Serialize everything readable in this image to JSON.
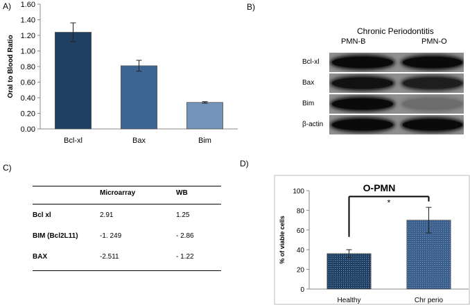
{
  "panel_labels": {
    "a": "A)",
    "b": "B)",
    "c": "C)",
    "d": "D)"
  },
  "chart_data": [
    {
      "type": "bar",
      "title": "",
      "xlabel": "",
      "ylabel": "Oral to Blood Ratio",
      "categories": [
        "Bcl-xl",
        "Bax",
        "Bim"
      ],
      "values": [
        1.24,
        0.81,
        0.34
      ],
      "errors": [
        0.12,
        0.07,
        0.01
      ],
      "ylim": [
        0,
        1.6
      ],
      "yticks": [
        "0.00",
        "0.20",
        "0.40",
        "0.60",
        "0.80",
        "1.00",
        "1.20",
        "1.40",
        "1.60"
      ],
      "colors": [
        "#1f3f63",
        "#3c6594",
        "#7393b8"
      ]
    },
    {
      "type": "bar",
      "title": "O-PMN",
      "xlabel": "",
      "ylabel": "% of viable cells",
      "categories": [
        "Healthy",
        "Chr perio"
      ],
      "values": [
        36,
        70
      ],
      "errors": [
        4,
        13
      ],
      "ylim": [
        0,
        100
      ],
      "yticks": [
        "0",
        "20",
        "40",
        "60",
        "80",
        "100"
      ],
      "colors": [
        "#1f3f63",
        "#3a5f8c"
      ],
      "significance": "*"
    }
  ],
  "blot": {
    "title": "Chronic Periodontitis",
    "lanes": [
      "PMN-B",
      "PMN-O"
    ],
    "rows": [
      {
        "label": "Bcl-xl",
        "b_intensity": 1.0,
        "o_intensity": 1.0
      },
      {
        "label": "Bax",
        "b_intensity": 0.95,
        "o_intensity": 0.85
      },
      {
        "label": "Bim",
        "b_intensity": 1.0,
        "o_intensity": 0.25
      },
      {
        "label": "β-actin",
        "b_intensity": 1.0,
        "o_intensity": 1.0
      }
    ]
  },
  "table": {
    "headers": [
      "",
      "Microarray",
      "WB"
    ],
    "rows": [
      [
        "Bcl xl",
        "2.91",
        "1.25"
      ],
      [
        "BIM (Bcl2L11)",
        "-1. 249",
        "- 2.86"
      ],
      [
        "BAX",
        "-2.511",
        "- 1.22"
      ]
    ]
  }
}
